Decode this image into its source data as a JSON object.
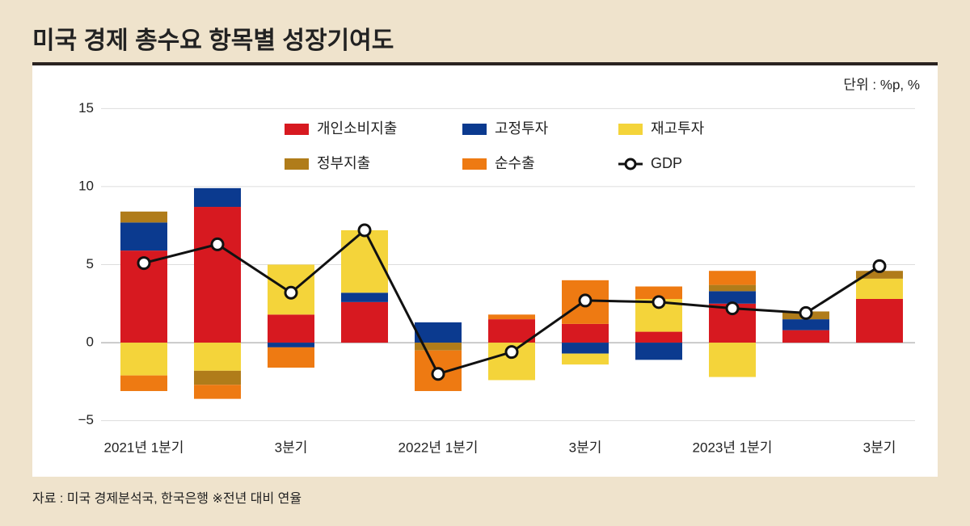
{
  "title": "미국 경제 총수요 항목별 성장기여도",
  "unit_label": "단위 : %p, %",
  "source": "자료 : 미국 경제분석국, 한국은행 ※전년 대비 연율",
  "chart_data": {
    "type": "bar",
    "stacked": true,
    "categories": [
      "2021년 1분기",
      null,
      "3분기",
      null,
      "2022년 1분기",
      null,
      "3분기",
      null,
      "2023년 1분기",
      null,
      "3분기"
    ],
    "series": [
      {
        "name": "개인소비지출",
        "color": "#d71920",
        "values": [
          5.9,
          8.7,
          1.8,
          2.6,
          0,
          1.5,
          1.2,
          0.7,
          2.5,
          0.8,
          2.8
        ]
      },
      {
        "name": "고정투자",
        "color": "#0b3a8f",
        "values": [
          1.8,
          1.2,
          -0.3,
          0.6,
          1.3,
          0,
          -0.7,
          -1.1,
          0.8,
          0.7,
          0
        ]
      },
      {
        "name": "재고투자",
        "color": "#f4d43a",
        "values": [
          -2.1,
          -1.8,
          3.2,
          4.0,
          0,
          -2.4,
          -0.7,
          2.1,
          -2.2,
          0,
          1.3
        ]
      },
      {
        "name": "정부지출",
        "color": "#b07c1a",
        "values": [
          0.7,
          -0.9,
          0,
          0,
          -0.5,
          0,
          0,
          0,
          0.4,
          0.5,
          0.5
        ]
      },
      {
        "name": "순수출",
        "color": "#ee7a12",
        "values": [
          -1.0,
          -0.9,
          -1.3,
          0,
          -2.6,
          0.3,
          2.8,
          0.8,
          0.9,
          0,
          0
        ]
      },
      {
        "name": "GDP",
        "type": "line",
        "color": "#111111",
        "values": [
          5.1,
          6.3,
          3.2,
          7.2,
          -2.0,
          -0.6,
          2.7,
          2.6,
          2.2,
          1.9,
          4.9
        ]
      }
    ],
    "ylim": [
      -6,
      16
    ],
    "yticks": [
      {
        "value": -5,
        "label": "−5"
      },
      0,
      5,
      10,
      15
    ],
    "grid": true
  }
}
